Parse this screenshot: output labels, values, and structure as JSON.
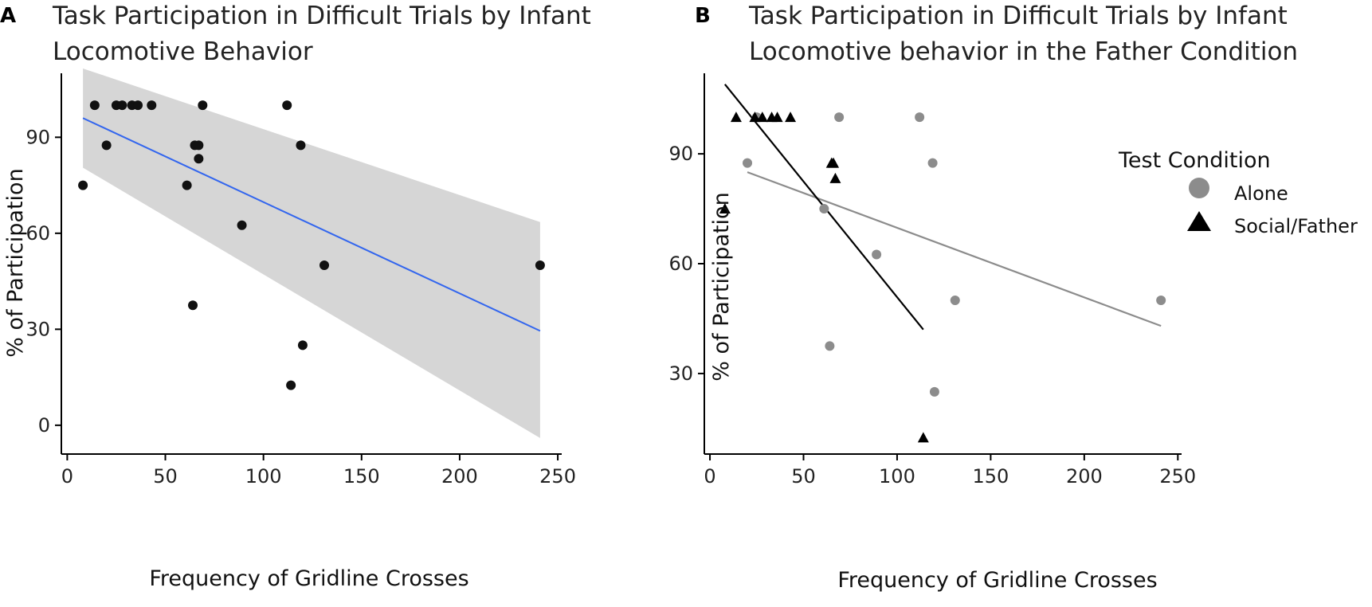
{
  "chart_data": [
    {
      "panel": "A",
      "type": "scatter",
      "title_lines": [
        "Task Participation in Difficult Trials by Infant",
        "Locomotive Behavior"
      ],
      "xlabel": "Frequency of Gridline Crosses",
      "ylabel": "% of Participation",
      "xlim": [
        -3,
        252
      ],
      "ylim": [
        -9,
        110
      ],
      "xticks": [
        0,
        50,
        100,
        150,
        200,
        250
      ],
      "yticks": [
        0,
        30,
        60,
        90
      ],
      "grid": false,
      "colors": {
        "point": "#111111",
        "fit_line": "#3366ee",
        "ci_band": "#d6d6d6"
      },
      "points": [
        {
          "x": 8,
          "y": 75
        },
        {
          "x": 14,
          "y": 100
        },
        {
          "x": 20,
          "y": 87.5
        },
        {
          "x": 25,
          "y": 100
        },
        {
          "x": 28,
          "y": 100
        },
        {
          "x": 33,
          "y": 100
        },
        {
          "x": 36,
          "y": 100
        },
        {
          "x": 43,
          "y": 100
        },
        {
          "x": 61,
          "y": 75
        },
        {
          "x": 64,
          "y": 37.5
        },
        {
          "x": 65,
          "y": 87.5
        },
        {
          "x": 67,
          "y": 87.5
        },
        {
          "x": 67,
          "y": 83.3
        },
        {
          "x": 69,
          "y": 100
        },
        {
          "x": 89,
          "y": 62.5
        },
        {
          "x": 112,
          "y": 100
        },
        {
          "x": 114,
          "y": 12.5
        },
        {
          "x": 119,
          "y": 87.5
        },
        {
          "x": 120,
          "y": 25
        },
        {
          "x": 131,
          "y": 50
        },
        {
          "x": 241,
          "y": 50
        }
      ],
      "fit": {
        "x": [
          8,
          241
        ],
        "y": [
          96,
          29.5
        ]
      },
      "ci_band": {
        "x": [
          8,
          241
        ],
        "upper": [
          111.5,
          63.5
        ],
        "lower": [
          80.5,
          -4
        ]
      }
    },
    {
      "panel": "B",
      "type": "scatter",
      "title_lines": [
        "Task Participation in Difficult Trials by Infant",
        "Locomotive behavior in the Father Condition"
      ],
      "xlabel": "Frequency of Gridline Crosses",
      "ylabel": "% of Participation",
      "xlim": [
        -3,
        252
      ],
      "ylim": [
        8,
        112
      ],
      "xticks": [
        0,
        50,
        100,
        150,
        200,
        250
      ],
      "yticks": [
        30,
        60,
        90
      ],
      "grid": false,
      "legend": {
        "title": "Test Condition",
        "position": "right"
      },
      "series": [
        {
          "name": "Alone",
          "marker": "circle",
          "color": "#8c8c8c",
          "points": [
            {
              "x": 20,
              "y": 87.5
            },
            {
              "x": 25,
              "y": 100
            },
            {
              "x": 61,
              "y": 75
            },
            {
              "x": 64,
              "y": 37.5
            },
            {
              "x": 69,
              "y": 100
            },
            {
              "x": 89,
              "y": 62.5
            },
            {
              "x": 112,
              "y": 100
            },
            {
              "x": 119,
              "y": 87.5
            },
            {
              "x": 120,
              "y": 25
            },
            {
              "x": 131,
              "y": 50
            },
            {
              "x": 241,
              "y": 50
            }
          ],
          "fit": {
            "x": [
              20,
              241
            ],
            "y": [
              85,
              43
            ]
          }
        },
        {
          "name": "Social/Father",
          "marker": "triangle",
          "color": "#000000",
          "points": [
            {
              "x": 8,
              "y": 75
            },
            {
              "x": 14,
              "y": 100
            },
            {
              "x": 24,
              "y": 100
            },
            {
              "x": 28,
              "y": 100
            },
            {
              "x": 33,
              "y": 100
            },
            {
              "x": 36,
              "y": 100
            },
            {
              "x": 43,
              "y": 100
            },
            {
              "x": 65,
              "y": 87.5
            },
            {
              "x": 66,
              "y": 87.5
            },
            {
              "x": 67,
              "y": 83.3
            },
            {
              "x": 114,
              "y": 12.5
            }
          ],
          "fit": {
            "x": [
              8,
              114
            ],
            "y": [
              109,
              42
            ]
          }
        }
      ]
    }
  ]
}
